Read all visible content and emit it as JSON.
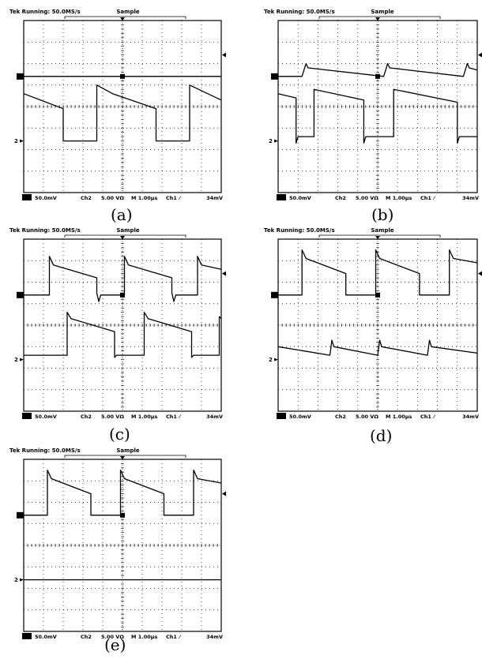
{
  "figure": {
    "panels": [
      {
        "id": "a",
        "caption": "(a)",
        "header": {
          "title": "Tek Running: 50.0MS/s",
          "mode": "Sample"
        },
        "footer": {
          "ch1_scale": "50.0mV",
          "ch2": "Ch2",
          "ch2_scale": "5.00 VΩ",
          "timebase": "M 1.00µs",
          "trigger_src": "Ch1",
          "trigger_slope": "⁄",
          "trigger_level": "34mV"
        },
        "ch1_marker": "1",
        "ch2_marker": "2"
      },
      {
        "id": "b",
        "caption": "(b)",
        "header": {
          "title": "Tek Running: 50.0MS/s",
          "mode": "Sample"
        },
        "footer": {
          "ch1_scale": "50.0mV",
          "ch2": "Ch2",
          "ch2_scale": "5.00 VΩ",
          "timebase": "M 1.00µs",
          "trigger_src": "Ch1",
          "trigger_slope": "⁄",
          "trigger_level": "34mV"
        },
        "ch1_marker": "1",
        "ch2_marker": "2"
      },
      {
        "id": "c",
        "caption": "(c)",
        "header": {
          "title": "Tek Running: 50.0MS/s",
          "mode": "Sample"
        },
        "footer": {
          "ch1_scale": "50.0mV",
          "ch2": "Ch2",
          "ch2_scale": "5.00 VΩ",
          "timebase": "M 1.00µs",
          "trigger_src": "Ch1",
          "trigger_slope": "⁄",
          "trigger_level": "34mV"
        },
        "ch1_marker": "1",
        "ch2_marker": "2"
      },
      {
        "id": "d",
        "caption": "(d)",
        "header": {
          "title": "Tek Running: 50.0MS/s",
          "mode": "Sample"
        },
        "footer": {
          "ch1_scale": "50.0mV",
          "ch2": "Ch2",
          "ch2_scale": "5.00 VΩ",
          "timebase": "M 1.00µs",
          "trigger_src": "Ch1",
          "trigger_slope": "⁄",
          "trigger_level": "34mV"
        },
        "ch1_marker": "1",
        "ch2_marker": "2"
      },
      {
        "id": "e",
        "caption": "(e)",
        "header": {
          "title": "Tek Running: 50.0MS/s",
          "mode": "Sample"
        },
        "footer": {
          "ch1_scale": "50.0mV",
          "ch2": "Ch2",
          "ch2_scale": "5.00 VΩ",
          "timebase": "M 1.00µs",
          "trigger_src": "Ch1",
          "trigger_slope": "⁄",
          "trigger_level": "34mV"
        },
        "ch1_marker": "1",
        "ch2_marker": "2"
      }
    ]
  },
  "chart_data": [
    {
      "type": "line",
      "panel": "a",
      "x_divisions": 10,
      "y_divisions": 8,
      "xlim": [
        0,
        10
      ],
      "ylim": [
        0,
        8
      ],
      "grid": true,
      "series": [
        {
          "points": [
            [
              0,
              5.4
            ],
            [
              10,
              5.4
            ]
          ]
        },
        {
          "points": [
            [
              0,
              4.6
            ],
            [
              2.0,
              3.9
            ],
            [
              2.0,
              2.4
            ],
            [
              3.7,
              2.4
            ],
            [
              3.7,
              5.0
            ],
            [
              4.5,
              4.6
            ],
            [
              6.7,
              3.9
            ],
            [
              6.7,
              2.4
            ],
            [
              8.4,
              2.4
            ],
            [
              8.4,
              5.0
            ],
            [
              10,
              4.3
            ]
          ]
        }
      ]
    },
    {
      "type": "line",
      "panel": "b",
      "x_divisions": 10,
      "y_divisions": 8,
      "xlim": [
        0,
        10
      ],
      "ylim": [
        0,
        8
      ],
      "grid": true,
      "series": [
        {
          "points": [
            [
              0,
              5.4
            ],
            [
              1.2,
              5.4
            ],
            [
              1.4,
              6.0
            ],
            [
              1.5,
              5.8
            ],
            [
              5.3,
              5.4
            ],
            [
              5.5,
              6.0
            ],
            [
              5.6,
              5.8
            ],
            [
              9.3,
              5.4
            ],
            [
              9.5,
              6.0
            ],
            [
              9.6,
              5.8
            ],
            [
              10,
              5.7
            ]
          ]
        },
        {
          "points": [
            [
              0,
              4.6
            ],
            [
              0.9,
              4.4
            ],
            [
              0.9,
              2.3
            ],
            [
              1.0,
              2.6
            ],
            [
              1.8,
              2.6
            ],
            [
              1.8,
              4.8
            ],
            [
              4.3,
              4.3
            ],
            [
              4.3,
              2.3
            ],
            [
              4.4,
              2.6
            ],
            [
              5.8,
              2.6
            ],
            [
              5.8,
              4.8
            ],
            [
              9.0,
              4.2
            ],
            [
              9.0,
              2.3
            ],
            [
              9.1,
              2.6
            ],
            [
              10,
              2.6
            ]
          ]
        }
      ]
    },
    {
      "type": "line",
      "panel": "c",
      "x_divisions": 10,
      "y_divisions": 8,
      "xlim": [
        0,
        10
      ],
      "ylim": [
        0,
        8
      ],
      "grid": true,
      "series": [
        {
          "points": [
            [
              0,
              5.4
            ],
            [
              1.3,
              5.4
            ],
            [
              1.3,
              7.2
            ],
            [
              1.5,
              6.8
            ],
            [
              3.7,
              6.2
            ],
            [
              3.7,
              5.5
            ],
            [
              3.8,
              5.1
            ],
            [
              3.9,
              5.4
            ],
            [
              5.1,
              5.4
            ],
            [
              5.1,
              7.2
            ],
            [
              5.3,
              6.8
            ],
            [
              7.5,
              6.2
            ],
            [
              7.5,
              5.5
            ],
            [
              7.6,
              5.1
            ],
            [
              7.7,
              5.4
            ],
            [
              8.8,
              5.4
            ],
            [
              8.8,
              7.2
            ],
            [
              9.0,
              6.8
            ],
            [
              10,
              6.6
            ]
          ]
        },
        {
          "points": [
            [
              0,
              2.6
            ],
            [
              2.2,
              2.6
            ],
            [
              2.2,
              4.6
            ],
            [
              2.4,
              4.3
            ],
            [
              4.6,
              3.7
            ],
            [
              4.6,
              2.5
            ],
            [
              4.7,
              2.6
            ],
            [
              6.1,
              2.6
            ],
            [
              6.1,
              4.6
            ],
            [
              6.3,
              4.3
            ],
            [
              8.5,
              3.7
            ],
            [
              8.5,
              2.5
            ],
            [
              8.6,
              2.6
            ],
            [
              9.9,
              2.6
            ],
            [
              9.9,
              4.4
            ],
            [
              10,
              4.3
            ]
          ]
        }
      ]
    },
    {
      "type": "line",
      "panel": "d",
      "x_divisions": 10,
      "y_divisions": 8,
      "xlim": [
        0,
        10
      ],
      "ylim": [
        0,
        8
      ],
      "grid": true,
      "series": [
        {
          "points": [
            [
              0,
              5.4
            ],
            [
              1.2,
              5.4
            ],
            [
              1.2,
              7.5
            ],
            [
              1.4,
              7.1
            ],
            [
              3.4,
              6.4
            ],
            [
              3.4,
              5.4
            ],
            [
              4.9,
              5.4
            ],
            [
              4.9,
              7.5
            ],
            [
              5.1,
              7.1
            ],
            [
              7.1,
              6.4
            ],
            [
              7.1,
              5.4
            ],
            [
              8.6,
              5.4
            ],
            [
              8.6,
              7.5
            ],
            [
              8.8,
              7.1
            ],
            [
              10,
              6.9
            ]
          ]
        },
        {
          "points": [
            [
              0,
              3.0
            ],
            [
              2.6,
              2.6
            ],
            [
              2.7,
              3.3
            ],
            [
              2.8,
              3.0
            ],
            [
              5.0,
              2.6
            ],
            [
              5.1,
              3.3
            ],
            [
              5.2,
              3.0
            ],
            [
              7.5,
              2.6
            ],
            [
              7.6,
              3.3
            ],
            [
              7.7,
              3.0
            ],
            [
              10,
              2.7
            ]
          ]
        }
      ]
    },
    {
      "type": "line",
      "panel": "e",
      "x_divisions": 10,
      "y_divisions": 8,
      "xlim": [
        0,
        10
      ],
      "ylim": [
        0,
        8
      ],
      "grid": true,
      "series": [
        {
          "points": [
            [
              0,
              5.4
            ],
            [
              1.2,
              5.4
            ],
            [
              1.2,
              7.5
            ],
            [
              1.4,
              7.1
            ],
            [
              3.4,
              6.4
            ],
            [
              3.4,
              5.4
            ],
            [
              4.9,
              5.4
            ],
            [
              4.9,
              7.5
            ],
            [
              5.1,
              7.1
            ],
            [
              7.1,
              6.4
            ],
            [
              7.1,
              5.4
            ],
            [
              8.6,
              5.4
            ],
            [
              8.6,
              7.5
            ],
            [
              8.8,
              7.1
            ],
            [
              10,
              6.9
            ]
          ]
        },
        {
          "points": [
            [
              0,
              2.4
            ],
            [
              10,
              2.4
            ]
          ]
        }
      ]
    }
  ]
}
